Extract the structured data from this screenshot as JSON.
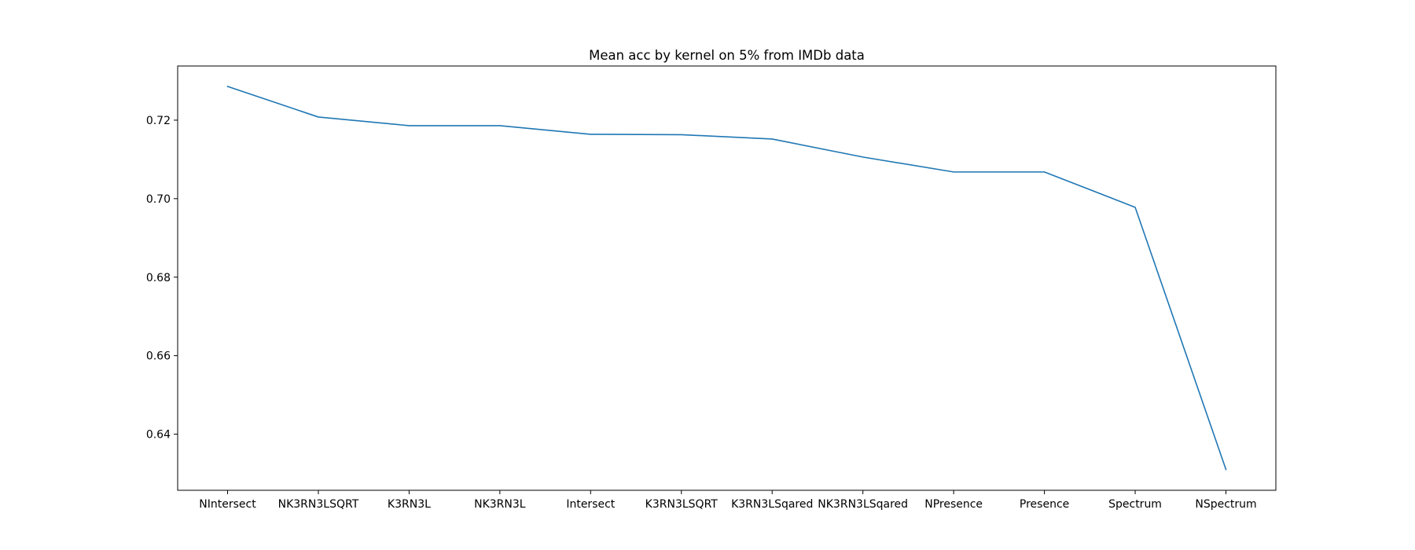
{
  "chart_data": {
    "type": "line",
    "title": "Mean acc by kernel on 5% from IMDb data",
    "xlabel": "",
    "ylabel": "",
    "categories": [
      "NIntersect",
      "NK3RN3LSQRT",
      "K3RN3L",
      "NK3RN3L",
      "Intersect",
      "K3RN3LSQRT",
      "K3RN3LSqared",
      "NK3RN3LSqared",
      "NPresence",
      "Presence",
      "Spectrum",
      "NSpectrum"
    ],
    "series": [
      {
        "values": [
          0.7286,
          0.7208,
          0.7186,
          0.7186,
          0.7164,
          0.7163,
          0.7152,
          0.7106,
          0.7068,
          0.7068,
          0.6978,
          0.631
        ],
        "color": "#1f77b4"
      }
    ],
    "ylim": [
      0.6257,
      0.7338
    ],
    "yticks": [
      0.64,
      0.66,
      0.68,
      0.7,
      0.72
    ],
    "ytick_labels": [
      "0.64",
      "0.66",
      "0.68",
      "0.70",
      "0.72"
    ],
    "grid": false,
    "legend": "none"
  }
}
